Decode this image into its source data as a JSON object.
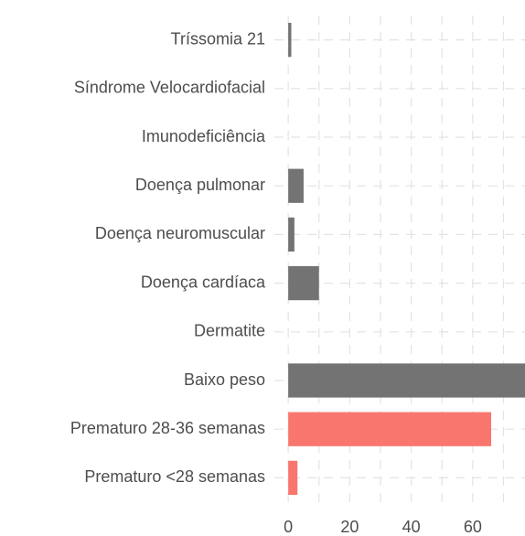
{
  "chart_data": {
    "type": "barh",
    "categories": [
      "Tríssomia 21",
      "Síndrome Velocardiofacial",
      "Imunodeficiência",
      "Doença pulmonar",
      "Doença neuromuscular",
      "Doença cardíaca",
      "Dermatite",
      "Baixo peso",
      "Prematuro 28-36 semanas",
      "Prematuro <28 semanas"
    ],
    "values": [
      1,
      0,
      0,
      5,
      2,
      10,
      0,
      77,
      66,
      3
    ],
    "colors": [
      "#737373",
      "#737373",
      "#737373",
      "#737373",
      "#737373",
      "#737373",
      "#737373",
      "#737373",
      "#F8766D",
      "#F8766D"
    ],
    "xlim": [
      -4.5,
      77
    ],
    "xticks": [
      0,
      20,
      40,
      60
    ],
    "x_minor_ticks": [
      10,
      30,
      50,
      70
    ],
    "grid": true
  }
}
